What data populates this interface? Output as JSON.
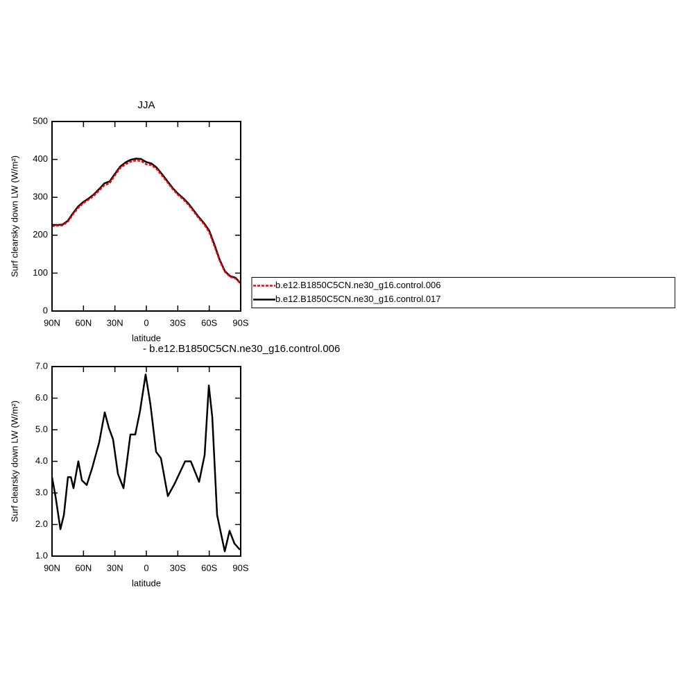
{
  "chart_data": [
    {
      "type": "line",
      "title": "JJA",
      "xlabel": "latitude",
      "ylabel": "Surf clearsky down LW (W/m²)",
      "x": [
        90,
        85,
        80,
        75,
        70,
        65,
        60,
        55,
        50,
        45,
        40,
        35,
        30,
        25,
        20,
        15,
        10,
        5,
        0,
        -5,
        -10,
        -15,
        -20,
        -25,
        -30,
        -35,
        -40,
        -45,
        -50,
        -55,
        -60,
        -65,
        -70,
        -75,
        -80,
        -85,
        -90
      ],
      "xlim": [
        90,
        -90
      ],
      "xticks": [
        {
          "value": 90,
          "label": "90N"
        },
        {
          "value": 60,
          "label": "60N"
        },
        {
          "value": 30,
          "label": "30N"
        },
        0,
        {
          "value": -30,
          "label": "30S"
        },
        {
          "value": -60,
          "label": "60S"
        },
        {
          "value": -90,
          "label": "90S"
        }
      ],
      "ylim": [
        0,
        500
      ],
      "yticks": [
        0,
        100,
        200,
        300,
        400,
        500
      ],
      "legend": "right",
      "series": [
        {
          "name": "b.e12.B1850C5CN.ne30_g16.control.006",
          "color": "#ff0000",
          "dash": true,
          "values": [
            224,
            225,
            226,
            235,
            255,
            272,
            285,
            294,
            304,
            318,
            332,
            337,
            358,
            377,
            387,
            394,
            397,
            396,
            387,
            385,
            374,
            357,
            340,
            322,
            307,
            295,
            281,
            263,
            245,
            229,
            208,
            171,
            132,
            103,
            90,
            86,
            72
          ]
        },
        {
          "name": "b.e12.B1850C5CN.ne30_g16.control.017",
          "color": "#000000",
          "dash": false,
          "values": [
            227,
            227,
            228,
            238,
            258,
            276,
            288,
            297,
            308,
            322,
            337,
            342,
            362,
            381,
            392,
            399,
            402,
            401,
            393,
            389,
            378,
            361,
            343,
            325,
            310,
            298,
            284,
            266,
            248,
            232,
            212,
            175,
            135,
            105,
            92,
            88,
            73
          ]
        }
      ]
    },
    {
      "type": "line",
      "title": "- b.e12.B1850C5CN.ne30_g16.control.006",
      "xlabel": "latitude",
      "ylabel": "Surf clearsky down LW (W/m²)",
      "x": [
        90,
        86.7,
        82,
        78.7,
        74.8,
        72,
        69.5,
        64.9,
        61.5,
        56.9,
        51.6,
        45,
        39.7,
        35.7,
        31.8,
        27.1,
        21.8,
        15.2,
        10.6,
        6,
        0.7,
        -3.9,
        -9.3,
        -13.9,
        -20.5,
        -27.1,
        -37,
        -42.4,
        -50.3,
        -55.6,
        -59.6,
        -62.9,
        -67.5,
        -74.8,
        -79.4,
        -84,
        -89.3
      ],
      "xlim": [
        90,
        -90
      ],
      "xticks": [
        {
          "value": 90,
          "label": "90N"
        },
        {
          "value": 60,
          "label": "60N"
        },
        {
          "value": 30,
          "label": "30N"
        },
        0,
        {
          "value": -30,
          "label": "30S"
        },
        {
          "value": -60,
          "label": "60S"
        },
        {
          "value": -90,
          "label": "90S"
        }
      ],
      "ylim": [
        1,
        7
      ],
      "yticks": [
        {
          "value": 1,
          "label": "1.0"
        },
        {
          "value": 2,
          "label": "2.0"
        },
        {
          "value": 3,
          "label": "3.0"
        },
        {
          "value": 4,
          "label": "4.0"
        },
        {
          "value": 5,
          "label": "5.0"
        },
        {
          "value": 6,
          "label": "6.0"
        },
        {
          "value": 7,
          "label": "7.0"
        }
      ],
      "series": [
        {
          "color": "#000000",
          "dash": false,
          "values": [
            3.5,
            2.9,
            1.85,
            2.3,
            3.5,
            3.5,
            3.15,
            4.0,
            3.4,
            3.25,
            3.8,
            4.6,
            5.55,
            5.05,
            4.7,
            3.6,
            3.15,
            4.85,
            4.85,
            5.6,
            6.75,
            5.8,
            4.3,
            4.1,
            2.9,
            3.3,
            4.0,
            4.0,
            3.35,
            4.2,
            6.4,
            5.4,
            2.3,
            1.15,
            1.8,
            1.4,
            1.2
          ]
        }
      ]
    }
  ]
}
